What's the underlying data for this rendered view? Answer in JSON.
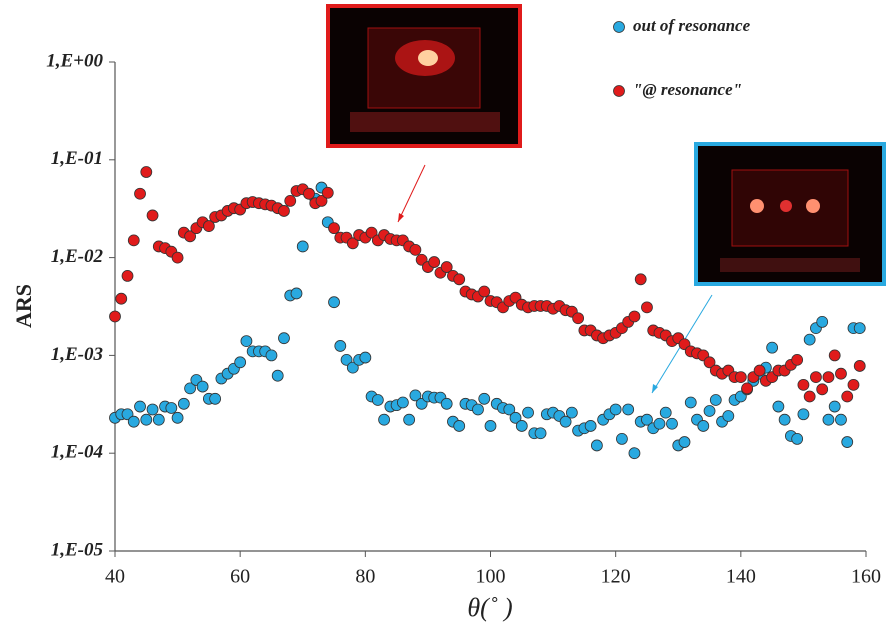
{
  "chart_data": {
    "type": "scatter",
    "x_label": "θ(˚ )",
    "y_label": "ARS",
    "log_y": true,
    "xlim": [
      40,
      160
    ],
    "xticks": [
      40,
      60,
      80,
      100,
      120,
      140,
      160
    ],
    "ylim": [
      1e-05,
      1
    ],
    "yticks": [
      {
        "value": 1e-05,
        "label": "1,E-05"
      },
      {
        "value": 0.0001,
        "label": "1,E-04"
      },
      {
        "value": 0.001,
        "label": "1,E-03"
      },
      {
        "value": 0.01,
        "label": "1,E-02"
      },
      {
        "value": 0.1,
        "label": "1,E-01"
      },
      {
        "value": 1,
        "label": "1,E+00"
      }
    ],
    "x": [
      40,
      41,
      42,
      43,
      44,
      45,
      46,
      47,
      48,
      49,
      50,
      51,
      52,
      53,
      54,
      55,
      56,
      57,
      58,
      59,
      60,
      61,
      62,
      63,
      64,
      65,
      66,
      67,
      68,
      69,
      70,
      71,
      72,
      73,
      74,
      75,
      76,
      77,
      78,
      79,
      80,
      81,
      82,
      83,
      84,
      85,
      86,
      87,
      88,
      89,
      90,
      91,
      92,
      93,
      94,
      95,
      96,
      97,
      98,
      99,
      100,
      101,
      102,
      103,
      104,
      105,
      106,
      107,
      108,
      109,
      110,
      111,
      112,
      113,
      114,
      115,
      116,
      117,
      118,
      119,
      120,
      121,
      122,
      123,
      124,
      125,
      126,
      127,
      128,
      129,
      130,
      131,
      132,
      133,
      134,
      135,
      136,
      137,
      138,
      139,
      140,
      141,
      142,
      143,
      144,
      145,
      146,
      147,
      148,
      149,
      150,
      151,
      152,
      153,
      154,
      155,
      156,
      157,
      158,
      159
    ],
    "series": [
      {
        "name": "out of resonance",
        "color": "#29a9e0",
        "values": [
          0.00023,
          0.00025,
          0.00025,
          0.00021,
          0.0003,
          0.00022,
          0.00028,
          0.00022,
          0.0003,
          0.00029,
          0.00023,
          0.00032,
          0.00046,
          0.00056,
          0.00048,
          0.00036,
          0.00036,
          0.00058,
          0.00065,
          0.00073,
          0.00085,
          0.0014,
          0.0011,
          0.0011,
          0.0011,
          0.001,
          0.00062,
          0.0015,
          0.0041,
          0.0043,
          0.013,
          0.045,
          0.04,
          0.052,
          0.023,
          0.0035,
          0.00125,
          0.0009,
          0.00075,
          0.0009,
          0.00095,
          0.00038,
          0.00035,
          0.00022,
          0.0003,
          0.00031,
          0.00033,
          0.00022,
          0.00039,
          0.00032,
          0.00038,
          0.00037,
          0.00037,
          0.00032,
          0.00021,
          0.00019,
          0.00032,
          0.00031,
          0.00028,
          0.00036,
          0.00019,
          0.00032,
          0.00029,
          0.00028,
          0.00023,
          0.00019,
          0.00026,
          0.00016,
          0.00016,
          0.00025,
          0.00026,
          0.00024,
          0.00021,
          0.00026,
          0.00017,
          0.00018,
          0.00019,
          0.00012,
          0.00022,
          0.00025,
          0.00028,
          0.00014,
          0.00028,
          0.0001,
          0.00021,
          0.00022,
          0.00018,
          0.0002,
          0.00026,
          0.0002,
          0.00012,
          0.00013,
          0.00033,
          0.00022,
          0.00019,
          0.00027,
          0.00035,
          0.00021,
          0.00024,
          0.00035,
          0.00038,
          0.00045,
          0.00055,
          0.00065,
          0.00075,
          0.0012,
          0.0003,
          0.00022,
          0.00015,
          0.00014,
          0.00025,
          0.00145,
          0.0019,
          0.0022,
          0.00022,
          0.0003,
          0.00022,
          0.00013,
          0.0019,
          0.0019
        ]
      },
      {
        "name": "\"@ resonance\"",
        "color": "#e01b1b",
        "values": [
          0.0025,
          0.0038,
          0.0065,
          0.015,
          0.045,
          0.075,
          0.027,
          0.013,
          0.0125,
          0.0115,
          0.01,
          0.018,
          0.0165,
          0.02,
          0.023,
          0.021,
          0.026,
          0.027,
          0.03,
          0.032,
          0.031,
          0.036,
          0.037,
          0.036,
          0.035,
          0.034,
          0.032,
          0.03,
          0.038,
          0.048,
          0.05,
          0.045,
          0.036,
          0.038,
          0.046,
          0.02,
          0.016,
          0.016,
          0.014,
          0.017,
          0.016,
          0.018,
          0.015,
          0.017,
          0.0155,
          0.015,
          0.015,
          0.013,
          0.012,
          0.0095,
          0.008,
          0.009,
          0.007,
          0.008,
          0.0065,
          0.006,
          0.0045,
          0.0042,
          0.004,
          0.0045,
          0.0036,
          0.0035,
          0.0031,
          0.0036,
          0.0039,
          0.0033,
          0.0031,
          0.0032,
          0.0032,
          0.0032,
          0.003,
          0.0032,
          0.0029,
          0.0028,
          0.0024,
          0.0018,
          0.0018,
          0.0016,
          0.0015,
          0.0016,
          0.0017,
          0.0019,
          0.0022,
          0.0025,
          0.006,
          0.0031,
          0.0018,
          0.0017,
          0.0016,
          0.0014,
          0.0015,
          0.0013,
          0.0011,
          0.00105,
          0.001,
          0.00085,
          0.0007,
          0.00065,
          0.0007,
          0.0006,
          0.0006,
          0.00046,
          0.0006,
          0.0007,
          0.00055,
          0.0006,
          0.0007,
          0.0007,
          0.0008,
          0.0009,
          0.0005,
          0.00038,
          0.0006,
          0.00045,
          0.0006,
          0.001,
          0.00065,
          0.00038,
          0.0005,
          0.00078
        ]
      }
    ]
  }
}
